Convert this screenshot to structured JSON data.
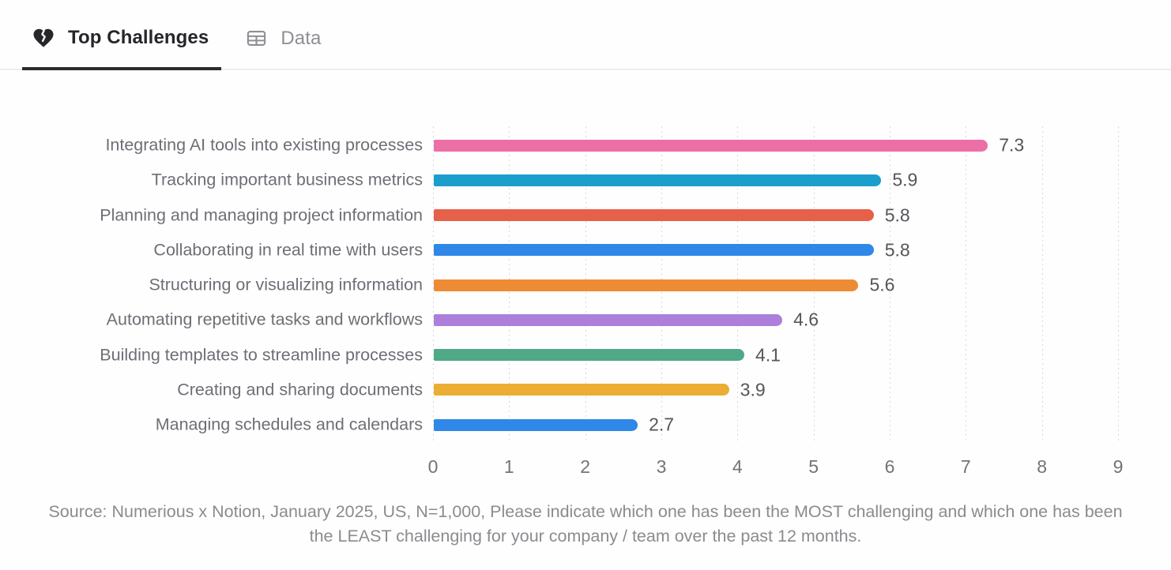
{
  "tabs": [
    {
      "label": "Top Challenges",
      "icon": "broken-heart-icon",
      "active": true
    },
    {
      "label": "Data",
      "icon": "table-icon",
      "active": false
    }
  ],
  "chart_data": {
    "type": "bar",
    "orientation": "horizontal",
    "title": "Top Challenges",
    "categories": [
      "Integrating AI tools into existing processes",
      "Tracking important business metrics",
      "Planning and managing project information",
      "Collaborating in real time with users",
      "Structuring or visualizing information",
      "Automating repetitive tasks and workflows",
      "Building templates to streamline processes",
      "Creating and sharing documents",
      "Managing schedules and calendars"
    ],
    "values": [
      7.3,
      5.9,
      5.8,
      5.8,
      5.6,
      4.6,
      4.1,
      3.9,
      2.7
    ],
    "bar_colors": [
      "#EC6FA5",
      "#1A9FCD",
      "#E76049",
      "#2F87E8",
      "#EE8B35",
      "#AC7FDA",
      "#4FA886",
      "#EBAE33",
      "#2F87E8"
    ],
    "xlim": [
      0,
      9
    ],
    "x_ticks": [
      0,
      1,
      2,
      3,
      4,
      5,
      6,
      7,
      8,
      9
    ],
    "grid": "vertical-dotted",
    "value_labels": true,
    "xlabel": "",
    "ylabel": ""
  },
  "source": {
    "text": "Source: Numerious x Notion, January 2025, US, N=1,000, Please indicate which one has been the MOST challenging and which one has been the LEAST challenging for your company /  team over the past 12 months."
  },
  "colors": {
    "tab_active": "#26262A",
    "tab_inactive": "#8E8E93",
    "active_underline": "#2B2B2F",
    "category_label": "#6E6E76",
    "value_label": "#55555B",
    "tick_label": "#737379",
    "gridline": "#D8D8DB",
    "source_text": "#8B8B90",
    "background": "#FEFEFE"
  }
}
